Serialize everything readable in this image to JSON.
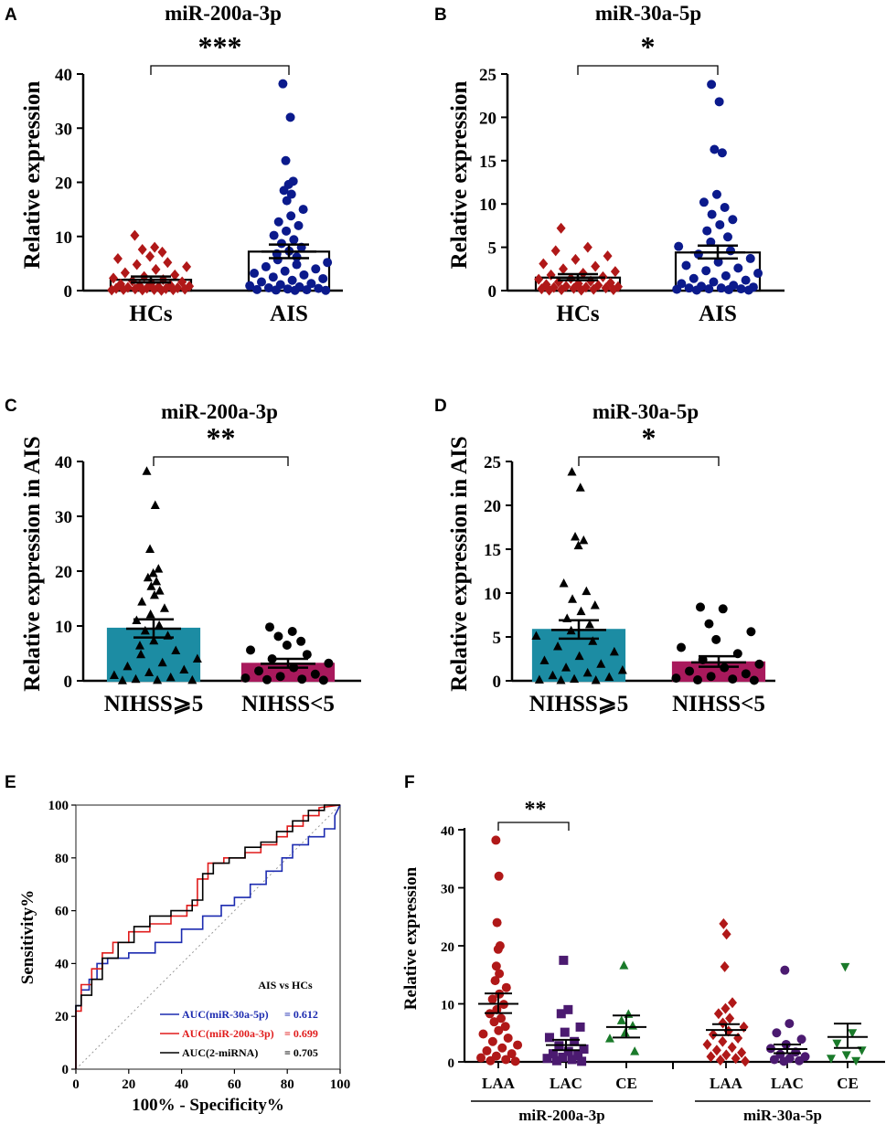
{
  "chart_data": [
    {
      "panel": "A",
      "type": "scatter",
      "title": "miR-200a-3p",
      "ylabel": "Relative expression",
      "ylim": [
        0,
        40
      ],
      "yticks": [
        0,
        10,
        20,
        30,
        40
      ],
      "significance": "***",
      "groups": [
        {
          "name": "HCs",
          "mean": 2.0,
          "sem_low": 1.5,
          "sem_high": 2.6,
          "bar_fill": "#ffffff",
          "bar_stroke": "#000000",
          "color": "#b01818",
          "marker": "diamond",
          "values": [
            10.2,
            8.0,
            7.6,
            7.1,
            6.3,
            5.9,
            5.2,
            4.8,
            4.4,
            3.9,
            3.3,
            2.9,
            2.6,
            2.3,
            2.0,
            1.8,
            1.6,
            1.4,
            1.2,
            1.0,
            0.9,
            0.8,
            0.7,
            0.6,
            0.5,
            0.45,
            0.4,
            0.35,
            0.3,
            0.25,
            0.2,
            0.2,
            0.15,
            0.1,
            0.1,
            0.05
          ]
        },
        {
          "name": "AIS",
          "mean": 7.2,
          "sem_low": 6.0,
          "sem_high": 8.5,
          "bar_fill": "#ffffff",
          "bar_stroke": "#000000",
          "color": "#0b1a8c",
          "marker": "circle",
          "values": [
            38.2,
            32.0,
            24.0,
            20.2,
            19.6,
            18.5,
            17.8,
            16.6,
            15.0,
            13.8,
            12.7,
            12.0,
            11.0,
            10.2,
            9.4,
            8.7,
            8.0,
            7.3,
            6.8,
            6.2,
            5.7,
            5.2,
            4.8,
            4.4,
            4.0,
            3.6,
            3.2,
            2.9,
            2.5,
            2.2,
            1.9,
            1.6,
            1.3,
            1.1,
            0.9,
            0.7,
            0.5,
            0.4,
            0.3,
            0.2,
            0.15,
            0.1,
            0.05,
            0.05
          ]
        }
      ]
    },
    {
      "panel": "B",
      "type": "scatter",
      "title": "miR-30a-5p",
      "ylabel": "Relative expression",
      "ylim": [
        0,
        25
      ],
      "yticks": [
        0,
        5,
        10,
        15,
        20,
        25
      ],
      "significance": "*",
      "groups": [
        {
          "name": "HCs",
          "mean": 1.5,
          "sem_low": 1.2,
          "sem_high": 1.9,
          "bar_fill": "#ffffff",
          "bar_stroke": "#000000",
          "color": "#b01818",
          "marker": "diamond",
          "values": [
            7.2,
            5.0,
            4.6,
            4.0,
            3.6,
            3.1,
            2.8,
            2.5,
            2.2,
            2.0,
            1.8,
            1.6,
            1.4,
            1.3,
            1.1,
            1.0,
            0.9,
            0.8,
            0.7,
            0.6,
            0.5,
            0.45,
            0.4,
            0.35,
            0.3,
            0.25,
            0.2,
            0.15,
            0.1,
            0.1,
            0.05,
            0.05
          ]
        },
        {
          "name": "AIS",
          "mean": 4.4,
          "sem_low": 3.7,
          "sem_high": 5.2,
          "bar_fill": "#ffffff",
          "bar_stroke": "#000000",
          "color": "#0b1a8c",
          "marker": "circle",
          "values": [
            23.8,
            21.8,
            16.3,
            15.9,
            11.1,
            10.2,
            9.6,
            8.8,
            8.2,
            7.6,
            6.9,
            6.2,
            5.6,
            5.1,
            4.6,
            4.2,
            3.7,
            3.3,
            2.9,
            2.6,
            2.3,
            2.0,
            1.7,
            1.4,
            1.2,
            1.0,
            0.8,
            0.6,
            0.5,
            0.4,
            0.3,
            0.2,
            0.15,
            0.1,
            0.05,
            0.05,
            0.3,
            0.2
          ]
        }
      ]
    },
    {
      "panel": "C",
      "type": "scatter",
      "title": "miR-200a-3p",
      "ylabel": "Relative expression in AIS",
      "ylim": [
        0,
        40
      ],
      "yticks": [
        0,
        10,
        20,
        30,
        40
      ],
      "significance": "**",
      "groups": [
        {
          "name": "NIHSS⩾5",
          "mean": 9.5,
          "sem_low": 7.9,
          "sem_high": 11.2,
          "bar_fill": "#1c8ca3",
          "bar_stroke": "#1c8ca3",
          "color": "#000000",
          "marker": "triangle",
          "values": [
            38.2,
            32.0,
            24.0,
            20.4,
            19.6,
            18.8,
            18.1,
            17.2,
            16.4,
            15.6,
            14.4,
            13.2,
            12.1,
            11.0,
            10.1,
            9.1,
            8.2,
            7.3,
            6.4,
            5.5,
            4.8,
            4.0,
            3.3,
            2.6,
            2.0,
            1.5,
            1.0,
            0.6,
            0.3,
            0.1,
            0.1,
            0.05
          ]
        },
        {
          "name": "NIHSS<5",
          "mean": 3.1,
          "sem_low": 2.4,
          "sem_high": 4.0,
          "bar_fill": "#a8195c",
          "bar_stroke": "#a8195c",
          "color": "#000000",
          "marker": "circle",
          "values": [
            9.8,
            9.0,
            8.1,
            7.2,
            6.5,
            5.6,
            4.8,
            4.0,
            3.2,
            2.4,
            1.8,
            1.2,
            0.8,
            0.5,
            0.3,
            0.2,
            0.1
          ]
        }
      ]
    },
    {
      "panel": "D",
      "type": "scatter",
      "title": "miR-30a-5p",
      "ylabel": "Relative expression in AIS",
      "ylim": [
        0,
        25
      ],
      "yticks": [
        0,
        5,
        10,
        15,
        20,
        25
      ],
      "significance": "*",
      "groups": [
        {
          "name": "NIHSS⩾5",
          "mean": 5.8,
          "sem_low": 4.8,
          "sem_high": 6.9,
          "bar_fill": "#1c8ca3",
          "bar_stroke": "#1c8ca3",
          "color": "#000000",
          "marker": "triangle",
          "values": [
            23.8,
            22.0,
            16.4,
            16.0,
            15.4,
            11.1,
            10.2,
            9.3,
            8.6,
            7.9,
            7.1,
            6.4,
            5.7,
            5.1,
            4.5,
            3.9,
            3.3,
            2.8,
            2.3,
            1.9,
            1.5,
            1.2,
            0.9,
            0.6,
            0.4,
            0.2,
            0.1,
            0.05,
            0.05
          ]
        },
        {
          "name": "NIHSS<5",
          "mean": 2.1,
          "sem_low": 1.6,
          "sem_high": 2.8,
          "bar_fill": "#a8195c",
          "bar_stroke": "#a8195c",
          "color": "#000000",
          "marker": "circle",
          "values": [
            8.4,
            8.2,
            6.5,
            5.6,
            4.7,
            3.8,
            3.1,
            2.4,
            1.9,
            1.5,
            1.1,
            0.8,
            0.5,
            0.3,
            0.2,
            0.1,
            0.05
          ]
        }
      ]
    },
    {
      "panel": "E",
      "type": "line",
      "title": "",
      "xlabel": "100% - Specificity%",
      "ylabel": "Sensitivity%",
      "xlim": [
        0,
        100
      ],
      "ylim": [
        0,
        100
      ],
      "xticks": [
        0,
        20,
        40,
        60,
        80,
        100
      ],
      "yticks": [
        0,
        20,
        40,
        60,
        80,
        100
      ],
      "legend_title": "AIS vs HCs",
      "series": [
        {
          "name": "AUC(miR-30a-5p)",
          "auc_label": "= 0.612",
          "color": "#1c2bb0",
          "x": [
            0,
            0,
            2,
            2,
            5,
            5,
            8,
            8,
            12,
            12,
            20,
            20,
            30,
            30,
            40,
            40,
            48,
            48,
            55,
            55,
            60,
            60,
            66,
            66,
            72,
            72,
            78,
            78,
            82,
            82,
            88,
            88,
            94,
            94,
            98,
            98,
            100
          ],
          "y": [
            0,
            24,
            24,
            30,
            30,
            34,
            34,
            40,
            40,
            42,
            42,
            44,
            44,
            48,
            48,
            53,
            53,
            58,
            58,
            62,
            62,
            65,
            65,
            70,
            70,
            75,
            75,
            80,
            80,
            85,
            85,
            88,
            88,
            91,
            91,
            96,
            100
          ]
        },
        {
          "name": "AUC(miR-200a-3p)",
          "auc_label": "= 0.699",
          "color": "#e01c1c",
          "x": [
            0,
            0,
            2,
            2,
            6,
            6,
            10,
            10,
            14,
            14,
            20,
            20,
            28,
            28,
            36,
            36,
            42,
            42,
            46,
            46,
            50,
            50,
            56,
            56,
            64,
            64,
            70,
            70,
            76,
            76,
            80,
            80,
            86,
            86,
            92,
            92,
            100
          ],
          "y": [
            0,
            22,
            22,
            32,
            32,
            38,
            38,
            44,
            44,
            48,
            48,
            52,
            52,
            55,
            55,
            58,
            58,
            62,
            62,
            72,
            72,
            78,
            78,
            80,
            80,
            82,
            82,
            85,
            85,
            88,
            88,
            92,
            92,
            96,
            96,
            99,
            100
          ]
        },
        {
          "name": "AUC(2-miRNA)",
          "auc_label": "= 0.705",
          "color": "#000000",
          "x": [
            0,
            0,
            2,
            2,
            6,
            6,
            10,
            10,
            16,
            16,
            22,
            22,
            28,
            28,
            36,
            36,
            44,
            44,
            48,
            48,
            52,
            52,
            58,
            58,
            64,
            64,
            70,
            70,
            76,
            76,
            82,
            82,
            88,
            88,
            94,
            94,
            100
          ],
          "y": [
            0,
            24,
            24,
            28,
            28,
            34,
            34,
            42,
            42,
            48,
            48,
            54,
            54,
            58,
            58,
            60,
            60,
            64,
            64,
            74,
            74,
            78,
            78,
            80,
            80,
            84,
            84,
            86,
            86,
            90,
            90,
            94,
            94,
            98,
            98,
            100,
            100
          ]
        }
      ],
      "reference_line": {
        "x": [
          0,
          100
        ],
        "y": [
          0,
          100
        ],
        "style": "dotted"
      }
    },
    {
      "panel": "F",
      "type": "scatter",
      "title": "",
      "ylabel": "Relative expression",
      "ylim": [
        0,
        40
      ],
      "yticks": [
        0,
        10,
        20,
        30,
        40
      ],
      "significance": "**",
      "supergroups": [
        "miR-200a-3p",
        "miR-30a-5p"
      ],
      "groups": [
        {
          "name": "LAA",
          "super": 0,
          "mean": 10.0,
          "sem_low": 8.4,
          "sem_high": 11.8,
          "color": "#b01818",
          "marker": "circle",
          "values": [
            38.2,
            32.0,
            24.0,
            20.0,
            19.4,
            16.5,
            15.2,
            14.0,
            12.8,
            11.7,
            10.8,
            9.9,
            9.0,
            8.3,
            7.5,
            6.9,
            6.1,
            5.4,
            4.8,
            4.1,
            3.5,
            2.9,
            2.4,
            1.9,
            1.4,
            1.0,
            0.7,
            0.4,
            0.2,
            0.1
          ]
        },
        {
          "name": "LAC",
          "super": 0,
          "mean": 2.9,
          "sem_low": 2.0,
          "sem_high": 3.8,
          "color": "#4b1a70",
          "marker": "square",
          "values": [
            17.5,
            9.0,
            8.3,
            6.0,
            5.1,
            4.2,
            3.5,
            2.8,
            2.2,
            1.8,
            1.4,
            1.1,
            0.8,
            0.6,
            0.4,
            0.2,
            0.1
          ]
        },
        {
          "name": "CE",
          "super": 0,
          "mean": 6.0,
          "sem_low": 4.2,
          "sem_high": 8.0,
          "color": "#1a7a2a",
          "marker": "triangle",
          "values": [
            16.6,
            8.2,
            7.1,
            6.2,
            5.0,
            4.0,
            1.8
          ]
        },
        {
          "name": "LAA",
          "super": 1,
          "mean": 5.5,
          "sem_low": 4.6,
          "sem_high": 6.5,
          "color": "#b01818",
          "marker": "diamond",
          "values": [
            23.8,
            22.0,
            16.4,
            10.2,
            9.2,
            8.3,
            7.5,
            6.7,
            6.0,
            5.3,
            4.7,
            4.1,
            3.5,
            3.0,
            2.5,
            2.0,
            1.6,
            1.2,
            0.9,
            0.6,
            0.3,
            0.1
          ]
        },
        {
          "name": "LAC",
          "super": 1,
          "mean": 2.2,
          "sem_low": 1.5,
          "sem_high": 3.0,
          "color": "#4b1a70",
          "marker": "circle",
          "values": [
            15.8,
            6.6,
            5.0,
            3.9,
            3.0,
            2.3,
            1.7,
            1.3,
            0.9,
            0.6,
            0.4,
            0.2,
            0.1
          ]
        },
        {
          "name": "CE",
          "super": 1,
          "mean": 4.3,
          "sem_low": 2.4,
          "sem_high": 6.6,
          "color": "#1a7a2a",
          "marker": "triangle-down",
          "values": [
            16.4,
            5.0,
            3.2,
            2.0,
            1.2,
            0.6,
            0.2
          ]
        }
      ]
    }
  ]
}
